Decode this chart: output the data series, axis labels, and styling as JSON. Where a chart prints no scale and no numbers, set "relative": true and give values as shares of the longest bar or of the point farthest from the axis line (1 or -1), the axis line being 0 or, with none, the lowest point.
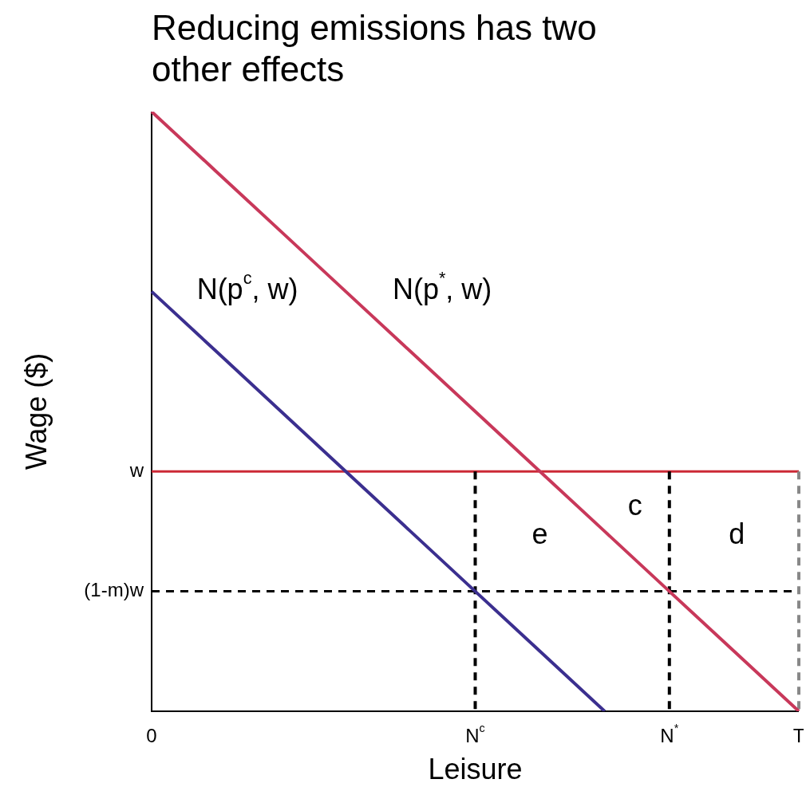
{
  "chart_data": {
    "type": "line",
    "title": "Reducing emissions has two other effects",
    "xlabel": "Leisure",
    "ylabel": "Wage ($)",
    "relative": true,
    "categories": [
      "0",
      null,
      null,
      null,
      null,
      "N$^{c}$",
      null,
      null,
      "N$^{*}$",
      null,
      "T"
    ],
    "series": [
      {
        "color": "#c8385a",
        "values": [
          1,
          0.9,
          0.8,
          0.7,
          0.6,
          0.5,
          0.4,
          0.3,
          0.2,
          0.1,
          0
        ]
      },
      {
        "color": "#3b2f8f",
        "values": [
          0.7,
          0.6,
          0.5,
          0.4,
          0.3,
          0.2,
          0.1,
          0,
          null,
          null,
          null
        ]
      },
      {
        "color": "#000000",
        "line_style": "dashed",
        "x": [
          "N$^{c}$",
          "N$^{c}$"
        ],
        "values": [
          0.4,
          0
        ]
      },
      {
        "color": "#000000",
        "line_style": "dashed",
        "x": [
          "N$^{*}$",
          "N$^{*}$"
        ],
        "values": [
          0.4,
          0
        ]
      },
      {
        "color": "#888888",
        "line_style": "dashed",
        "x": [
          "T",
          "T"
        ],
        "values": [
          0.4,
          0
        ]
      }
    ],
    "ref_lines": [
      {
        "axis": "y",
        "value": 0.4,
        "label": "w",
        "color": "#cc2936",
        "line_style": "solid"
      },
      {
        "axis": "y",
        "value": 0.2,
        "label": "(1-m)w",
        "color": "#000000",
        "line_style": "dashed"
      }
    ],
    "annotations": [
      "N(p$^{c}$, w)",
      "N(p$^{*}$, w)",
      "e",
      "c",
      "d"
    ]
  }
}
